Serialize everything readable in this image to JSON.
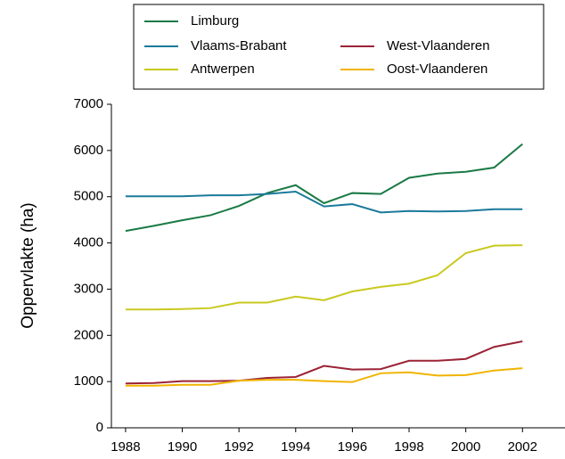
{
  "chart_data": {
    "type": "line",
    "y_label": "Oppervlakte (ha)",
    "x": [
      1988,
      1989,
      1990,
      1991,
      1992,
      1993,
      1994,
      1995,
      1996,
      1997,
      1998,
      1999,
      2000,
      2001,
      2002
    ],
    "series": [
      {
        "name": "Limburg",
        "color": "#1a7a45",
        "values": [
          4260,
          4370,
          4490,
          4600,
          4800,
          5080,
          5250,
          4860,
          5080,
          5060,
          5410,
          5500,
          5540,
          5630,
          6140
        ]
      },
      {
        "name": "Vlaams-Brabant",
        "color": "#1b7a9b",
        "values": [
          5010,
          5010,
          5010,
          5030,
          5030,
          5060,
          5110,
          4790,
          4840,
          4660,
          4690,
          4680,
          4690,
          4730,
          4730
        ]
      },
      {
        "name": "Antwerpen",
        "color": "#c9c91f",
        "values": [
          2560,
          2560,
          2570,
          2590,
          2710,
          2710,
          2840,
          2760,
          2950,
          3050,
          3120,
          3300,
          3780,
          3940,
          3950
        ]
      },
      {
        "name": "West-Vlaanderen",
        "color": "#9b2335",
        "values": [
          960,
          970,
          1010,
          1010,
          1020,
          1080,
          1100,
          1340,
          1260,
          1270,
          1450,
          1450,
          1490,
          1750,
          1870
        ]
      },
      {
        "name": "Oost-Vlaanderen",
        "color": "#f0b400",
        "values": [
          910,
          910,
          930,
          930,
          1020,
          1040,
          1040,
          1010,
          990,
          1180,
          1200,
          1130,
          1140,
          1240,
          1290
        ]
      }
    ],
    "xlim": [
      1987.5,
      2003.5
    ],
    "xticks": [
      1988,
      1990,
      1992,
      1994,
      1996,
      1998,
      2000,
      2002
    ],
    "ylim": [
      0,
      7000
    ],
    "yticks": [
      0,
      1000,
      2000,
      3000,
      4000,
      5000,
      6000,
      7000
    ],
    "grid": false
  }
}
